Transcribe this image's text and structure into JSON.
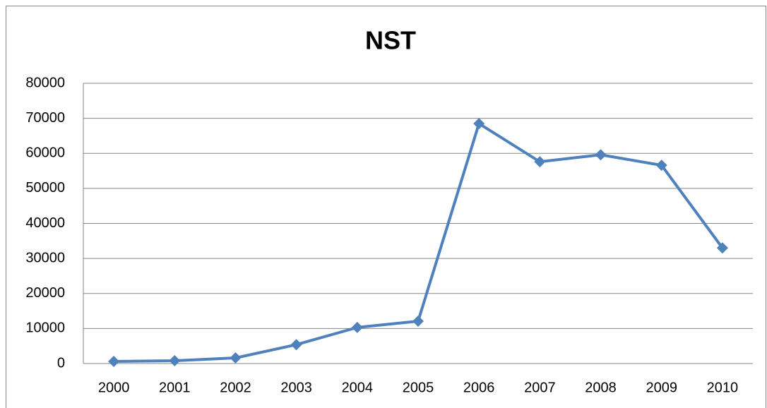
{
  "chart_data": {
    "type": "line",
    "title": "NST",
    "categories": [
      "2000",
      "2001",
      "2002",
      "2003",
      "2004",
      "2005",
      "2006",
      "2007",
      "2008",
      "2009",
      "2010"
    ],
    "values": [
      600,
      800,
      1600,
      5400,
      10300,
      12100,
      68500,
      57600,
      59600,
      56600,
      33000
    ],
    "color": "#4f81bd",
    "ylim": [
      0,
      80000
    ],
    "yticks": [
      0,
      10000,
      20000,
      30000,
      40000,
      50000,
      60000,
      70000,
      80000
    ],
    "grid": true
  }
}
